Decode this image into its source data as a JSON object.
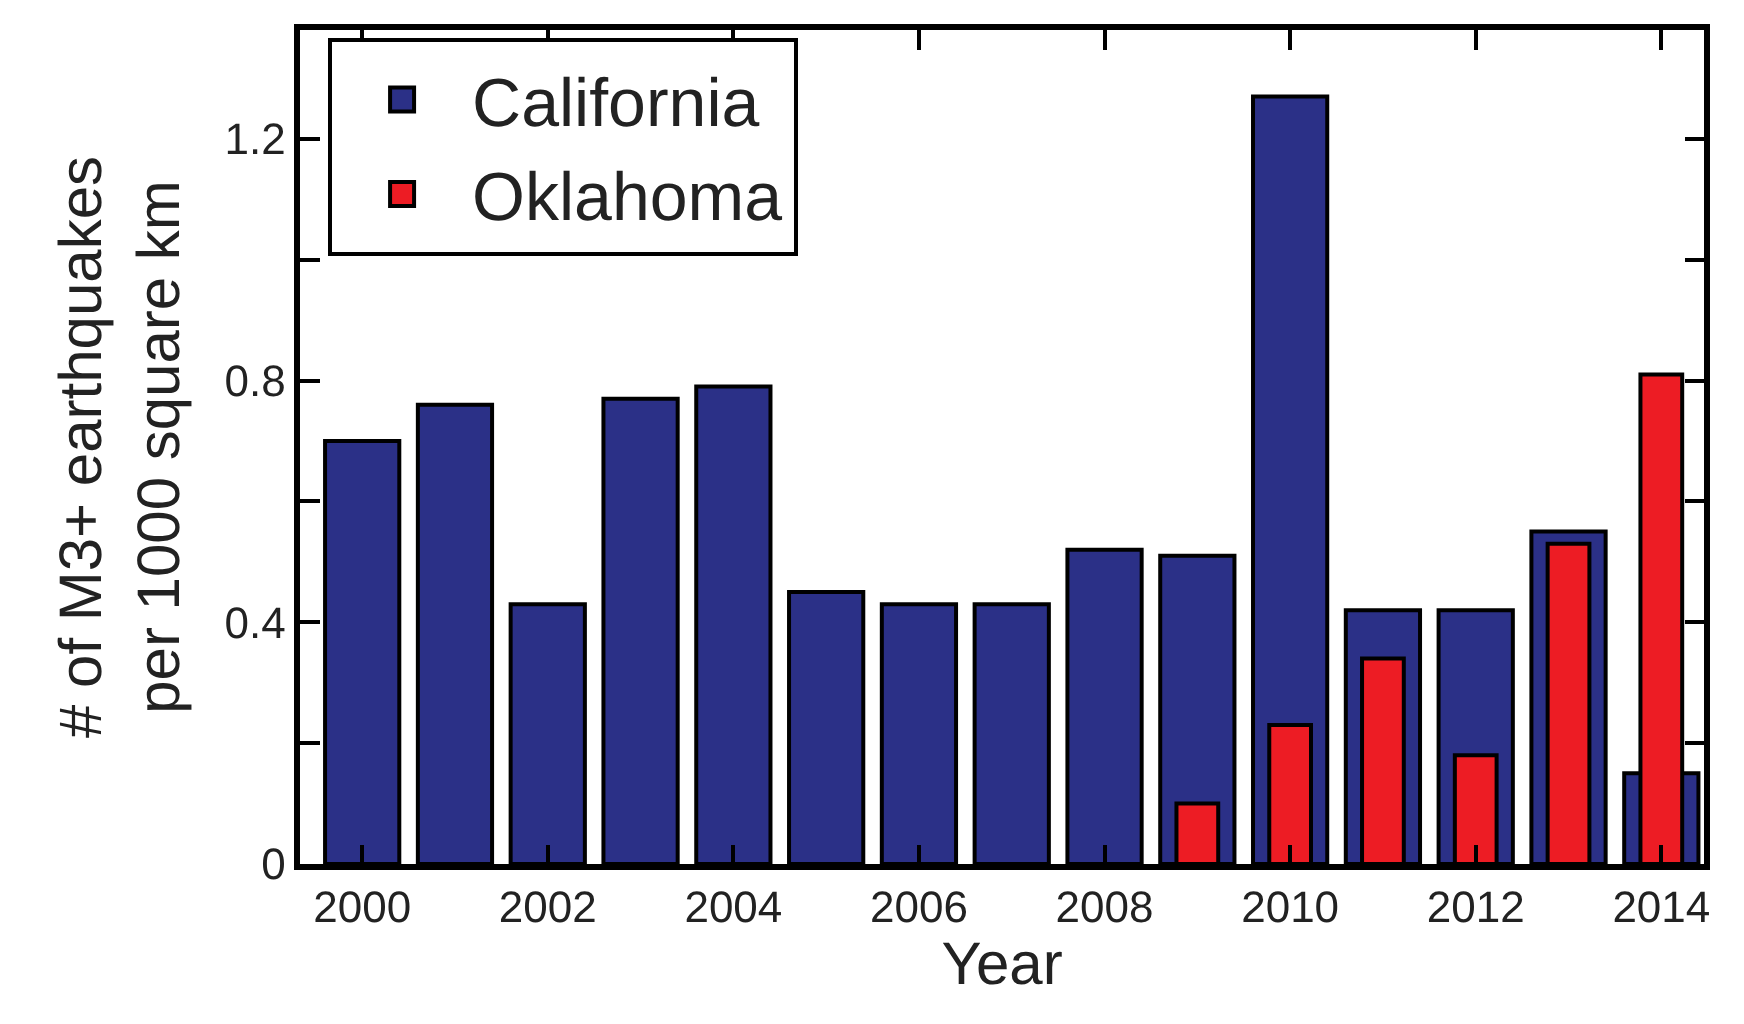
{
  "chart_data": {
    "type": "bar",
    "xlabel": "Year",
    "ylabel": "# of M3+ earthquakes\nper 1000 square km",
    "x": [
      2000,
      2001,
      2002,
      2003,
      2004,
      2005,
      2006,
      2007,
      2008,
      2009,
      2010,
      2011,
      2012,
      2013,
      2014
    ],
    "series": [
      {
        "name": "California",
        "color": "#2b3087",
        "values": [
          0.7,
          0.76,
          0.43,
          0.77,
          0.79,
          0.45,
          0.43,
          0.43,
          0.52,
          0.51,
          1.27,
          0.42,
          0.42,
          0.55,
          0.15
        ]
      },
      {
        "name": "Oklahoma",
        "color": "#ed1c24",
        "values": [
          null,
          null,
          null,
          null,
          null,
          null,
          null,
          null,
          null,
          0.1,
          0.23,
          0.34,
          0.18,
          0.53,
          0.81
        ]
      }
    ],
    "xlim": [
      1999.33,
      2014.46
    ],
    "xticks": [
      2000,
      2002,
      2004,
      2006,
      2008,
      2010,
      2012,
      2014
    ],
    "ylim": [
      0,
      1.38
    ],
    "yticks": [
      0,
      {
        "value": 0.2,
        "label": null
      },
      0.4,
      {
        "value": 0.6,
        "label": null
      },
      0.8,
      {
        "value": 1.0,
        "label": null
      },
      1.2
    ],
    "legend": "top left"
  }
}
